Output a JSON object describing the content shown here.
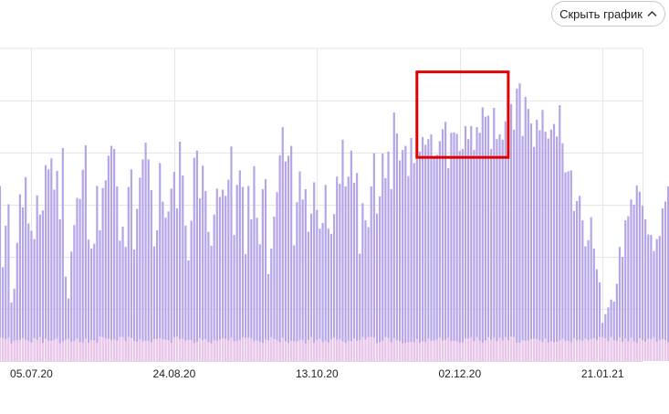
{
  "toolbar": {
    "hide_chart_label": "Скрыть график"
  },
  "colors": {
    "bar_main": "#b6a4e8",
    "bar_secondary": "#ebc6e9",
    "grid": "#e6e6e6",
    "axis": "#d8d8d8",
    "highlight": "#e00000",
    "holiday_label": "#a8001c"
  },
  "chart_data": {
    "type": "bar",
    "title": "",
    "xlabel": "",
    "ylabel": "",
    "x_start": "2020-06-24",
    "x_end": "2021-02-04",
    "x_ticks": [
      {
        "date": "2020-07-05",
        "label": "05.07.20",
        "holiday": true
      },
      {
        "date": "2020-08-24",
        "label": "24.08.20",
        "holiday": false
      },
      {
        "date": "2020-10-13",
        "label": "13.10.20",
        "holiday": false
      },
      {
        "date": "2020-12-02",
        "label": "02.12.20",
        "holiday": false
      },
      {
        "date": "2021-01-21",
        "label": "21.01.21",
        "holiday": false
      }
    ],
    "ylim": [
      0,
      6
    ],
    "y_gridlines": [
      1,
      2,
      3,
      4,
      5
    ],
    "y_tick_labels_shown": false,
    "grid": true,
    "highlight": {
      "shape": "rectangle",
      "x_from": "2020-11-17",
      "x_to": "2020-12-19",
      "y_from": 3.91,
      "y_to": 5.55
    },
    "series": [
      {
        "values": [
          3.36,
          1.8,
          2.6,
          3.01,
          1.12,
          1.39,
          2.27,
          3.2,
          2.95,
          3.53,
          2.64,
          2.5,
          2.34,
          3.18,
          2.81,
          2.89,
          3.76,
          3.68,
          3.89,
          3.29,
          3.65,
          2.72,
          4.09,
          1.62,
          1.2,
          2.1,
          2.61,
          3.13,
          3.11,
          3.67,
          4.14,
          2.33,
          2.16,
          2.25,
          3.36,
          2.51,
          3.32,
          3.47,
          3.94,
          4.13,
          4.07,
          3.35,
          2.31,
          2.58,
          2.19,
          3.34,
          3.68,
          2.14,
          2.92,
          3.52,
          3.87,
          4.19,
          3.87,
          3.28,
          2.2,
          2.51,
          3.8,
          3.06,
          2.75,
          2.87,
          3.31,
          3.63,
          2.93,
          4.21,
          3.56,
          2.6,
          1.93,
          2.69,
          3.9,
          4.04,
          3.12,
          3.75,
          3.26,
          2.48,
          2.21,
          2.81,
          3.31,
          3.15,
          3.29,
          3.17,
          3.48,
          4.12,
          2.42,
          3.38,
          3.66,
          3.34,
          2.05,
          3.36,
          2.72,
          3.74,
          2.75,
          2.24,
          3.3,
          3.49,
          1.67,
          2.16,
          2.77,
          3.24,
          3.95,
          4.49,
          3.83,
          3.94,
          4.13,
          2.22,
          3.05,
          3.64,
          3.1,
          3.3,
          2.48,
          2.83,
          3.43,
          2.9,
          2.54,
          2.65,
          3.38,
          2.54,
          2.44,
          2.82,
          3.54,
          3.4,
          4.25,
          3.35,
          3.54,
          4.04,
          3.42,
          3.61,
          2.06,
          3.03,
          2.7,
          2.57,
          3.35,
          3.99,
          2.83,
          3.16,
          3.98,
          3.51,
          4.02,
          3.3,
          4.77,
          4.37,
          3.85,
          4.05,
          4.13,
          3.55,
          4.28,
          3.8,
          3.88,
          4.02,
          4.3,
          4.15,
          4.26,
          4.35,
          3.89,
          3.96,
          4.22,
          4.45,
          4.59,
          3.7,
          4.38,
          4.39,
          4.36,
          4.03,
          4.07,
          4.51,
          4.26,
          4.51,
          4.05,
          4.49,
          4.38,
          4.87,
          4.69,
          4.71,
          4.07,
          4.86,
          4.26,
          4.35,
          4.25,
          4.6,
          4.61,
          4.93,
          4.44,
          5.23,
          5.33,
          4.32,
          5.07,
          4.84,
          4.56,
          4.11,
          4.63,
          4.43,
          4.82,
          4.4,
          4.27,
          4.44,
          4.55,
          4.31,
          4.91,
          4.18,
          3.62,
          3.64,
          3.66,
          2.88,
          3.07,
          3.17,
          2.7,
          2.2,
          2.32,
          2.76,
          2.16,
          1.76,
          1.51,
          0.73,
          0.9,
          1.03,
          1.18,
          1.14,
          1.48,
          2.19,
          2.0,
          2.7,
          2.78,
          3.1,
          3.0,
          3.37,
          3.25,
          2.98,
          2.72,
          2.43,
          2.42,
          2.11,
          2.34,
          2.4,
          2.93,
          3.06,
          3.35,
          3.41,
          3.73,
          4.01,
          4.3,
          4.54,
          3.38,
          3.39,
          2.51,
          0.31
        ]
      },
      {
        "values": [
          0.45,
          0.44,
          0.42,
          0.45,
          0.34,
          0.39,
          0.4,
          0.41,
          0.44,
          0.41,
          0.39,
          0.35,
          0.44,
          0.41,
          0.46,
          0.35,
          0.43,
          0.39,
          0.39,
          0.41,
          0.43,
          0.34,
          0.38,
          0.41,
          0.43,
          0.37,
          0.38,
          0.43,
          0.36,
          0.35,
          0.43,
          0.35,
          0.4,
          0.4,
          0.35,
          0.47,
          0.46,
          0.43,
          0.43,
          0.4,
          0.42,
          0.39,
          0.46,
          0.46,
          0.38,
          0.46,
          0.44,
          0.39,
          0.37,
          0.42,
          0.38,
          0.39,
          0.39,
          0.36,
          0.42,
          0.42,
          0.44,
          0.42,
          0.41,
          0.4,
          0.35,
          0.45,
          0.47,
          0.42,
          0.43,
          0.39,
          0.4,
          0.4,
          0.35,
          0.37,
          0.44,
          0.41,
          0.42,
          0.37,
          0.34,
          0.4,
          0.39,
          0.41,
          0.44,
          0.43,
          0.4,
          0.45,
          0.38,
          0.39,
          0.41,
          0.46,
          0.45,
          0.45,
          0.43,
          0.38,
          0.4,
          0.37,
          0.35,
          0.41,
          0.4,
          0.46,
          0.42,
          0.4,
          0.36,
          0.45,
          0.38,
          0.35,
          0.39,
          0.38,
          0.38,
          0.41,
          0.4,
          0.34,
          0.41,
          0.46,
          0.35,
          0.4,
          0.43,
          0.36,
          0.39,
          0.36,
          0.42,
          0.45,
          0.41,
          0.42,
          0.38,
          0.35,
          0.39,
          0.38,
          0.43,
          0.39,
          0.41,
          0.46,
          0.41,
          0.46,
          0.46,
          0.45,
          0.34,
          0.36,
          0.39,
          0.46,
          0.44,
          0.36,
          0.44,
          0.4,
          0.38,
          0.34,
          0.35,
          0.36,
          0.37,
          0.36,
          0.42,
          0.35,
          0.38,
          0.37,
          0.43,
          0.39,
          0.39,
          0.41,
          0.45,
          0.39,
          0.41,
          0.45,
          0.38,
          0.39,
          0.38,
          0.35,
          0.36,
          0.43,
          0.43,
          0.45,
          0.38,
          0.46,
          0.39,
          0.35,
          0.39,
          0.46,
          0.41,
          0.45,
          0.38,
          0.45,
          0.4,
          0.46,
          0.4,
          0.47,
          0.46,
          0.35,
          0.35,
          0.4,
          0.39,
          0.4,
          0.42,
          0.43,
          0.42,
          0.39,
          0.36,
          0.43,
          0.35,
          0.38,
          0.36,
          0.37,
          0.4,
          0.43,
          0.39,
          0.39,
          0.36,
          0.44,
          0.4,
          0.41,
          0.39,
          0.43,
          0.4,
          0.42,
          0.44,
          0.4,
          0.46,
          0.46,
          0.44,
          0.38,
          0.46,
          0.4,
          0.39,
          0.45,
          0.37,
          0.44,
          0.38,
          0.45,
          0.38,
          0.35,
          0.44,
          0.4,
          0.37,
          0.43,
          0.42,
          0.45,
          0.37,
          0.4,
          0.42,
          0.4,
          0.36,
          0.44,
          0.36
        ]
      }
    ]
  }
}
